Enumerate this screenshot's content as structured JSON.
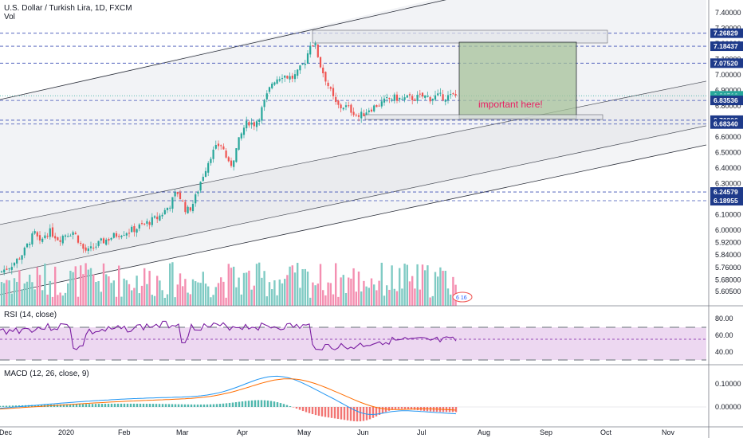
{
  "header": {
    "title": "U.S. Dollar / Turkish Lira, 1D, FXCM",
    "vol_label": "Vol",
    "rsi_label": "RSI (14, close)",
    "macd_label": "MACD (12, 26, close, 9)"
  },
  "annotation": {
    "text": "important here!",
    "color": "#e91e63",
    "box_color": "#a5c29a"
  },
  "colors": {
    "up": "#26a69a",
    "down": "#ef5350",
    "vol_up": "#80cbc4",
    "vol_down": "#f48fb1",
    "rsi_line": "#7b1fa2",
    "rsi_band": "#e1bee7",
    "macd_line": "#2196f3",
    "signal_line": "#ff6d00",
    "channel_fill": "#d1d4dc",
    "dashed_level": "#3f51b5",
    "price_label_bg": "#1e3a8a"
  },
  "chart_data": {
    "type": "candlestick",
    "symbol": "USDTRY",
    "price_axis_ticks": [
      7.4,
      7.3,
      7.2,
      7.1,
      7.0,
      6.9,
      6.8,
      6.7,
      6.6,
      6.5,
      6.4,
      6.3,
      6.2,
      6.1,
      6.0,
      5.92,
      5.84,
      5.76,
      5.68,
      5.605
    ],
    "price_axis_labels": [
      "7.40000",
      "7.30000",
      "7.20000",
      "7.10000",
      "7.00000",
      "6.90000",
      "6.80000",
      "6.70000",
      "6.60000",
      "6.50000",
      "6.40000",
      "6.30000",
      "6.20000",
      "6.10000",
      "6.00000",
      "5.92000",
      "5.84000",
      "5.76000",
      "5.68000",
      "5.60500"
    ],
    "highlighted_levels": [
      {
        "label": "7.26829",
        "value": 7.26829
      },
      {
        "label": "7.18437",
        "value": 7.18437
      },
      {
        "label": "7.07520",
        "value": 7.0752
      },
      {
        "label": "6.86516",
        "value": 6.86516,
        "style": "current"
      },
      {
        "label": "01:37:25",
        "value": 6.845,
        "style": "timer"
      },
      {
        "label": "6.83536",
        "value": 6.83536
      },
      {
        "label": "6.70806",
        "value": 6.70806
      },
      {
        "label": "6.68340",
        "value": 6.6834
      },
      {
        "label": "6.24579",
        "value": 6.24579
      },
      {
        "label": "6.18955",
        "value": 6.18955
      }
    ],
    "time_axis_labels": [
      "Dec",
      "2020",
      "Feb",
      "Mar",
      "Apr",
      "May",
      "Jun",
      "Jul",
      "Aug",
      "Sep",
      "Oct",
      "Nov"
    ],
    "rsi_axis_labels": [
      "80.00",
      "60.00",
      "40.00"
    ],
    "rsi_levels": [
      70,
      50,
      30
    ],
    "macd_axis_labels": [
      "0.10000",
      "0.00000"
    ],
    "close_path": [
      {
        "x": 0,
        "y": 5.73
      },
      {
        "x": 10,
        "y": 5.76
      },
      {
        "x": 20,
        "y": 5.8
      },
      {
        "x": 30,
        "y": 5.86
      },
      {
        "x": 38,
        "y": 5.94
      },
      {
        "x": 44,
        "y": 5.98
      },
      {
        "x": 50,
        "y": 5.91
      },
      {
        "x": 56,
        "y": 5.97
      },
      {
        "x": 62,
        "y": 5.99
      },
      {
        "x": 68,
        "y": 5.97
      },
      {
        "x": 74,
        "y": 5.94
      },
      {
        "x": 80,
        "y": 5.97
      },
      {
        "x": 86,
        "y": 5.98
      },
      {
        "x": 92,
        "y": 5.99
      },
      {
        "x": 98,
        "y": 5.94
      },
      {
        "x": 104,
        "y": 5.88
      },
      {
        "x": 110,
        "y": 5.86
      },
      {
        "x": 118,
        "y": 5.89
      },
      {
        "x": 126,
        "y": 5.92
      },
      {
        "x": 134,
        "y": 5.94
      },
      {
        "x": 142,
        "y": 5.96
      },
      {
        "x": 150,
        "y": 5.98
      },
      {
        "x": 158,
        "y": 5.99
      },
      {
        "x": 166,
        "y": 6.0
      },
      {
        "x": 174,
        "y": 6.02
      },
      {
        "x": 182,
        "y": 6.04
      },
      {
        "x": 190,
        "y": 6.06
      },
      {
        "x": 198,
        "y": 6.08
      },
      {
        "x": 206,
        "y": 6.12
      },
      {
        "x": 214,
        "y": 6.17
      },
      {
        "x": 222,
        "y": 6.25
      },
      {
        "x": 228,
        "y": 6.19
      },
      {
        "x": 234,
        "y": 6.12
      },
      {
        "x": 240,
        "y": 6.15
      },
      {
        "x": 246,
        "y": 6.22
      },
      {
        "x": 252,
        "y": 6.32
      },
      {
        "x": 258,
        "y": 6.4
      },
      {
        "x": 264,
        "y": 6.48
      },
      {
        "x": 270,
        "y": 6.52
      },
      {
        "x": 276,
        "y": 6.56
      },
      {
        "x": 282,
        "y": 6.5
      },
      {
        "x": 288,
        "y": 6.4
      },
      {
        "x": 294,
        "y": 6.48
      },
      {
        "x": 300,
        "y": 6.58
      },
      {
        "x": 306,
        "y": 6.66
      },
      {
        "x": 312,
        "y": 6.7
      },
      {
        "x": 318,
        "y": 6.68
      },
      {
        "x": 324,
        "y": 6.72
      },
      {
        "x": 330,
        "y": 6.8
      },
      {
        "x": 336,
        "y": 6.88
      },
      {
        "x": 342,
        "y": 6.96
      },
      {
        "x": 348,
        "y": 6.98
      },
      {
        "x": 354,
        "y": 7.0
      },
      {
        "x": 360,
        "y": 6.99
      },
      {
        "x": 366,
        "y": 6.98
      },
      {
        "x": 372,
        "y": 7.0
      },
      {
        "x": 378,
        "y": 7.05
      },
      {
        "x": 384,
        "y": 7.1
      },
      {
        "x": 390,
        "y": 7.22
      },
      {
        "x": 396,
        "y": 7.18
      },
      {
        "x": 402,
        "y": 7.06
      },
      {
        "x": 408,
        "y": 6.98
      },
      {
        "x": 414,
        "y": 6.9
      },
      {
        "x": 420,
        "y": 6.82
      },
      {
        "x": 426,
        "y": 6.79
      },
      {
        "x": 432,
        "y": 6.8
      },
      {
        "x": 438,
        "y": 6.78
      },
      {
        "x": 444,
        "y": 6.76
      },
      {
        "x": 450,
        "y": 6.73
      },
      {
        "x": 456,
        "y": 6.75
      },
      {
        "x": 462,
        "y": 6.78
      },
      {
        "x": 468,
        "y": 6.79
      },
      {
        "x": 474,
        "y": 6.81
      },
      {
        "x": 480,
        "y": 6.82
      },
      {
        "x": 486,
        "y": 6.84
      },
      {
        "x": 492,
        "y": 6.85
      },
      {
        "x": 498,
        "y": 6.85
      },
      {
        "x": 504,
        "y": 6.84
      },
      {
        "x": 510,
        "y": 6.85
      },
      {
        "x": 516,
        "y": 6.85
      },
      {
        "x": 522,
        "y": 6.85
      },
      {
        "x": 528,
        "y": 6.86
      },
      {
        "x": 534,
        "y": 6.86
      },
      {
        "x": 540,
        "y": 6.85
      },
      {
        "x": 546,
        "y": 6.86
      },
      {
        "x": 552,
        "y": 6.86
      },
      {
        "x": 558,
        "y": 6.86
      },
      {
        "x": 564,
        "y": 6.86
      },
      {
        "x": 570,
        "y": 6.865
      }
    ]
  },
  "footer_badge": "6 16"
}
